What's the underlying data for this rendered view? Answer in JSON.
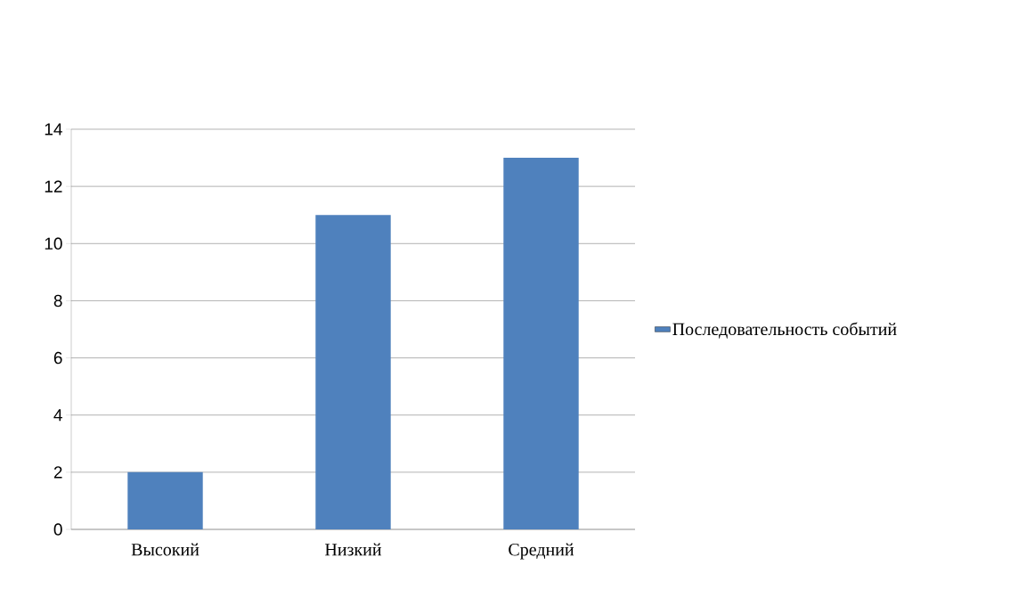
{
  "chart_data": {
    "type": "bar",
    "categories": [
      "Высокий",
      "Низкий",
      "Средний"
    ],
    "series": [
      {
        "name": "Последовательность событий",
        "color": "#4f81bd",
        "values": [
          2,
          11,
          13
        ]
      }
    ],
    "ylim": [
      0,
      14
    ],
    "yticks": [
      0,
      2,
      4,
      6,
      8,
      10,
      12,
      14
    ],
    "grid": "y",
    "legend": "right"
  }
}
